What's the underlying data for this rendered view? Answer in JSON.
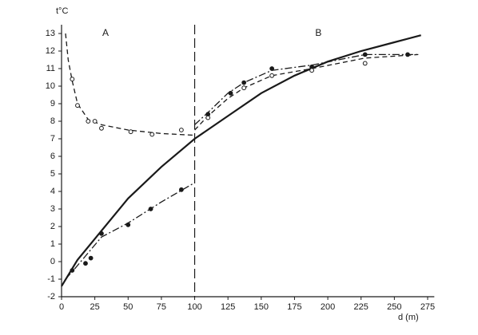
{
  "chart_data": {
    "type": "line",
    "y_label": "t°C",
    "x_label": "d (m)",
    "annotations": [
      {
        "text": "A",
        "x": 33,
        "y": 13
      },
      {
        "text": "B",
        "x": 193,
        "y": 13
      }
    ],
    "vline": {
      "x": 100,
      "style": "longdash"
    },
    "xlim": [
      0,
      280
    ],
    "ylim": [
      -2,
      13.5
    ],
    "xticks": [
      0,
      25,
      50,
      75,
      100,
      125,
      150,
      175,
      200,
      225,
      250,
      275
    ],
    "yticks": [
      -2,
      -1,
      0,
      1,
      2,
      3,
      4,
      5,
      6,
      7,
      8,
      9,
      10,
      11,
      12,
      13
    ],
    "color": "#1a1a1a",
    "series": [
      {
        "style": "solid",
        "x": [
          0,
          12,
          25,
          50,
          75,
          100,
          125,
          150,
          175,
          200,
          225,
          250,
          270
        ],
        "values": [
          -1.4,
          0.1,
          1.3,
          3.6,
          5.4,
          7.0,
          8.3,
          9.6,
          10.6,
          11.4,
          12.0,
          12.5,
          12.9
        ]
      },
      {
        "style": "dashed",
        "marker": "open",
        "x": [
          3,
          5,
          8,
          12,
          20,
          30,
          50,
          75,
          100
        ],
        "values": [
          13,
          11.5,
          10.3,
          9.0,
          8.1,
          7.8,
          7.5,
          7.3,
          7.2
        ],
        "points_x": [
          8,
          12,
          20,
          25,
          30,
          52,
          68,
          90
        ],
        "points": [
          10.4,
          8.9,
          8.0,
          8.0,
          7.6,
          7.4,
          7.25,
          7.5
        ]
      },
      {
        "style": "dashdot",
        "marker": "filled",
        "x": [
          3,
          10,
          20,
          30,
          50,
          75,
          100
        ],
        "values": [
          -1.0,
          -0.4,
          0.5,
          1.4,
          2.2,
          3.4,
          4.5
        ],
        "points_x": [
          8,
          18,
          22,
          30,
          50,
          67,
          90
        ],
        "points": [
          -0.5,
          -0.1,
          0.2,
          1.6,
          2.1,
          3.0,
          4.1
        ]
      },
      {
        "style": "dashdot",
        "marker": "filled",
        "x": [
          100,
          110,
          125,
          137,
          158,
          188,
          228,
          268
        ],
        "values": [
          7.8,
          8.5,
          9.6,
          10.2,
          10.9,
          11.2,
          11.8,
          11.8
        ],
        "points_x": [
          110,
          127,
          137,
          158,
          188,
          228,
          260
        ],
        "points": [
          8.4,
          9.6,
          10.2,
          11.0,
          11.1,
          11.8,
          11.8
        ]
      },
      {
        "style": "dashed",
        "marker": "open",
        "x": [
          100,
          110,
          125,
          137,
          158,
          188,
          228,
          268
        ],
        "values": [
          7.5,
          8.3,
          9.3,
          9.9,
          10.6,
          11.0,
          11.6,
          11.8
        ],
        "points_x": [
          110,
          137,
          158,
          188,
          228
        ],
        "points": [
          8.2,
          9.9,
          10.6,
          10.9,
          11.3
        ]
      }
    ]
  }
}
